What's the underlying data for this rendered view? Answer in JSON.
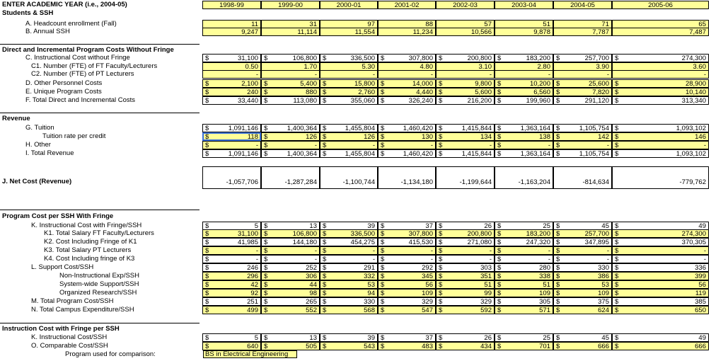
{
  "header": {
    "title": "ENTER ACADEMIC YEAR (i.e., 2004-05)",
    "years": [
      "1998-99",
      "1999-00",
      "2000-01",
      "2001-02",
      "2002-03",
      "2003-04",
      "2004-05",
      "2005-06"
    ]
  },
  "sections": {
    "students": "Students & SSH",
    "direct": "Direct and Incremental Program Costs Without Fringe",
    "revenue": "Revenue",
    "net_cost": "J.  Net Cost (Revenue)",
    "program_cost": "Program Cost per SSH With Fringe",
    "instruction": "Instruction Cost with Fringe per SSH"
  },
  "currency_symbol": "$",
  "rows": {
    "a": {
      "label": "A. Headcount enrollment (Fall)",
      "values": [
        "11",
        "31",
        "97",
        "88",
        "57",
        "51",
        "71",
        "65"
      ]
    },
    "b": {
      "label": "B. Annual SSH",
      "values": [
        "9,247",
        "11,114",
        "11,554",
        "11,234",
        "10,566",
        "9,878",
        "7,787",
        "7,487"
      ]
    },
    "c": {
      "label": "C. Instructional Cost without Fringe",
      "values": [
        "31,100",
        "106,800",
        "336,500",
        "307,800",
        "200,800",
        "183,200",
        "257,700",
        "274,300"
      ]
    },
    "c1": {
      "label": "C1. Number (FTE) of FT Faculty/Lecturers",
      "values": [
        "0.50",
        "1.70",
        "5.30",
        "4.80",
        "3.10",
        "2.80",
        "3.90",
        "3.60"
      ]
    },
    "c2": {
      "label": "C2. Number (FTE) of PT Lecturers",
      "values": [
        "-",
        "-",
        "-",
        "-",
        "-",
        "-",
        "-",
        "-"
      ]
    },
    "d": {
      "label": "D. Other Personnel Costs",
      "values": [
        "2,100",
        "5,400",
        "15,800",
        "14,000",
        "9,800",
        "10,200",
        "25,600",
        "28,900"
      ]
    },
    "e": {
      "label": "E. Unique Program Costs",
      "values": [
        "240",
        "880",
        "2,760",
        "4,440",
        "5,600",
        "6,560",
        "7,820",
        "10,140"
      ]
    },
    "f": {
      "label": "F. Total Direct and Incremental Costs",
      "values": [
        "33,440",
        "113,080",
        "355,060",
        "326,240",
        "216,200",
        "199,960",
        "291,120",
        "313,340"
      ]
    },
    "g": {
      "label": "G. Tuition",
      "values": [
        "1,091,146",
        "1,400,364",
        "1,455,804",
        "1,460,420",
        "1,415,844",
        "1,363,164",
        "1,105,754",
        "1,093,102"
      ]
    },
    "rate": {
      "label": "Tuition rate per credit",
      "values": [
        "118",
        "126",
        "126",
        "130",
        "134",
        "138",
        "142",
        "146"
      ]
    },
    "h": {
      "label": "H. Other",
      "values": [
        "-",
        "-",
        "-",
        "-",
        "-",
        "-",
        "-",
        "-"
      ]
    },
    "i": {
      "label": "I. Total Revenue",
      "values": [
        "1,091,146",
        "1,400,364",
        "1,455,804",
        "1,460,420",
        "1,415,844",
        "1,363,164",
        "1,105,754",
        "1,093,102"
      ]
    },
    "j": {
      "values": [
        "-1,057,706",
        "-1,287,284",
        "-1,100,744",
        "-1,134,180",
        "-1,199,644",
        "-1,163,204",
        "-814,634",
        "-779,762"
      ]
    },
    "k": {
      "label": "K. Instructional Cost with Fringe/SSH",
      "values": [
        "5",
        "13",
        "39",
        "37",
        "26",
        "25",
        "45",
        "49"
      ]
    },
    "k1": {
      "label": "K1. Total Salary FT Faculty/Lecturers",
      "values": [
        "31,100",
        "106,800",
        "336,500",
        "307,800",
        "200,800",
        "183,200",
        "257,700",
        "274,300"
      ]
    },
    "k2": {
      "label": "K2. Cost Including Fringe of K1",
      "values": [
        "41,985",
        "144,180",
        "454,275",
        "415,530",
        "271,080",
        "247,320",
        "347,895",
        "370,305"
      ]
    },
    "k3": {
      "label": "K3. Total Salary PT Lecturers",
      "values": [
        "-",
        "-",
        "-",
        "-",
        "-",
        "-",
        "-",
        "-"
      ]
    },
    "k4": {
      "label": "K4. Cost Including fringe of K3",
      "values": [
        "-",
        "-",
        "-",
        "-",
        "-",
        "-",
        "-",
        "-"
      ]
    },
    "l": {
      "label": "L. Support Cost/SSH",
      "values": [
        "246",
        "252",
        "291",
        "292",
        "303",
        "280",
        "330",
        "336"
      ]
    },
    "nonins": {
      "label": "Non-Instructional Exp/SSH",
      "values": [
        "296",
        "306",
        "332",
        "345",
        "351",
        "338",
        "386",
        "399"
      ]
    },
    "sysw": {
      "label": "System-wide Support/SSH",
      "values": [
        "42",
        "44",
        "53",
        "56",
        "51",
        "51",
        "53",
        "56"
      ]
    },
    "orgr": {
      "label": "Organized Research/SSH",
      "values": [
        "92",
        "98",
        "94",
        "109",
        "99",
        "109",
        "109",
        "119"
      ]
    },
    "m": {
      "label": "M. Total Program Cost/SSH",
      "values": [
        "251",
        "265",
        "330",
        "329",
        "329",
        "305",
        "375",
        "385"
      ]
    },
    "n": {
      "label": "N. Total Campus Expenditure/SSH",
      "values": [
        "499",
        "552",
        "568",
        "547",
        "592",
        "571",
        "624",
        "650"
      ]
    },
    "k_ins": {
      "label": "K. Instructional Cost/SSH",
      "values": [
        "5",
        "13",
        "39",
        "37",
        "26",
        "25",
        "45",
        "49"
      ]
    },
    "o": {
      "label": "O. Comparable Cost/SSH",
      "values": [
        "640",
        "505",
        "543",
        "483",
        "434",
        "701",
        "666",
        "666"
      ]
    },
    "program_used": {
      "label": "Program used for comparison:",
      "value": "BS in Electrical Engineering"
    }
  }
}
